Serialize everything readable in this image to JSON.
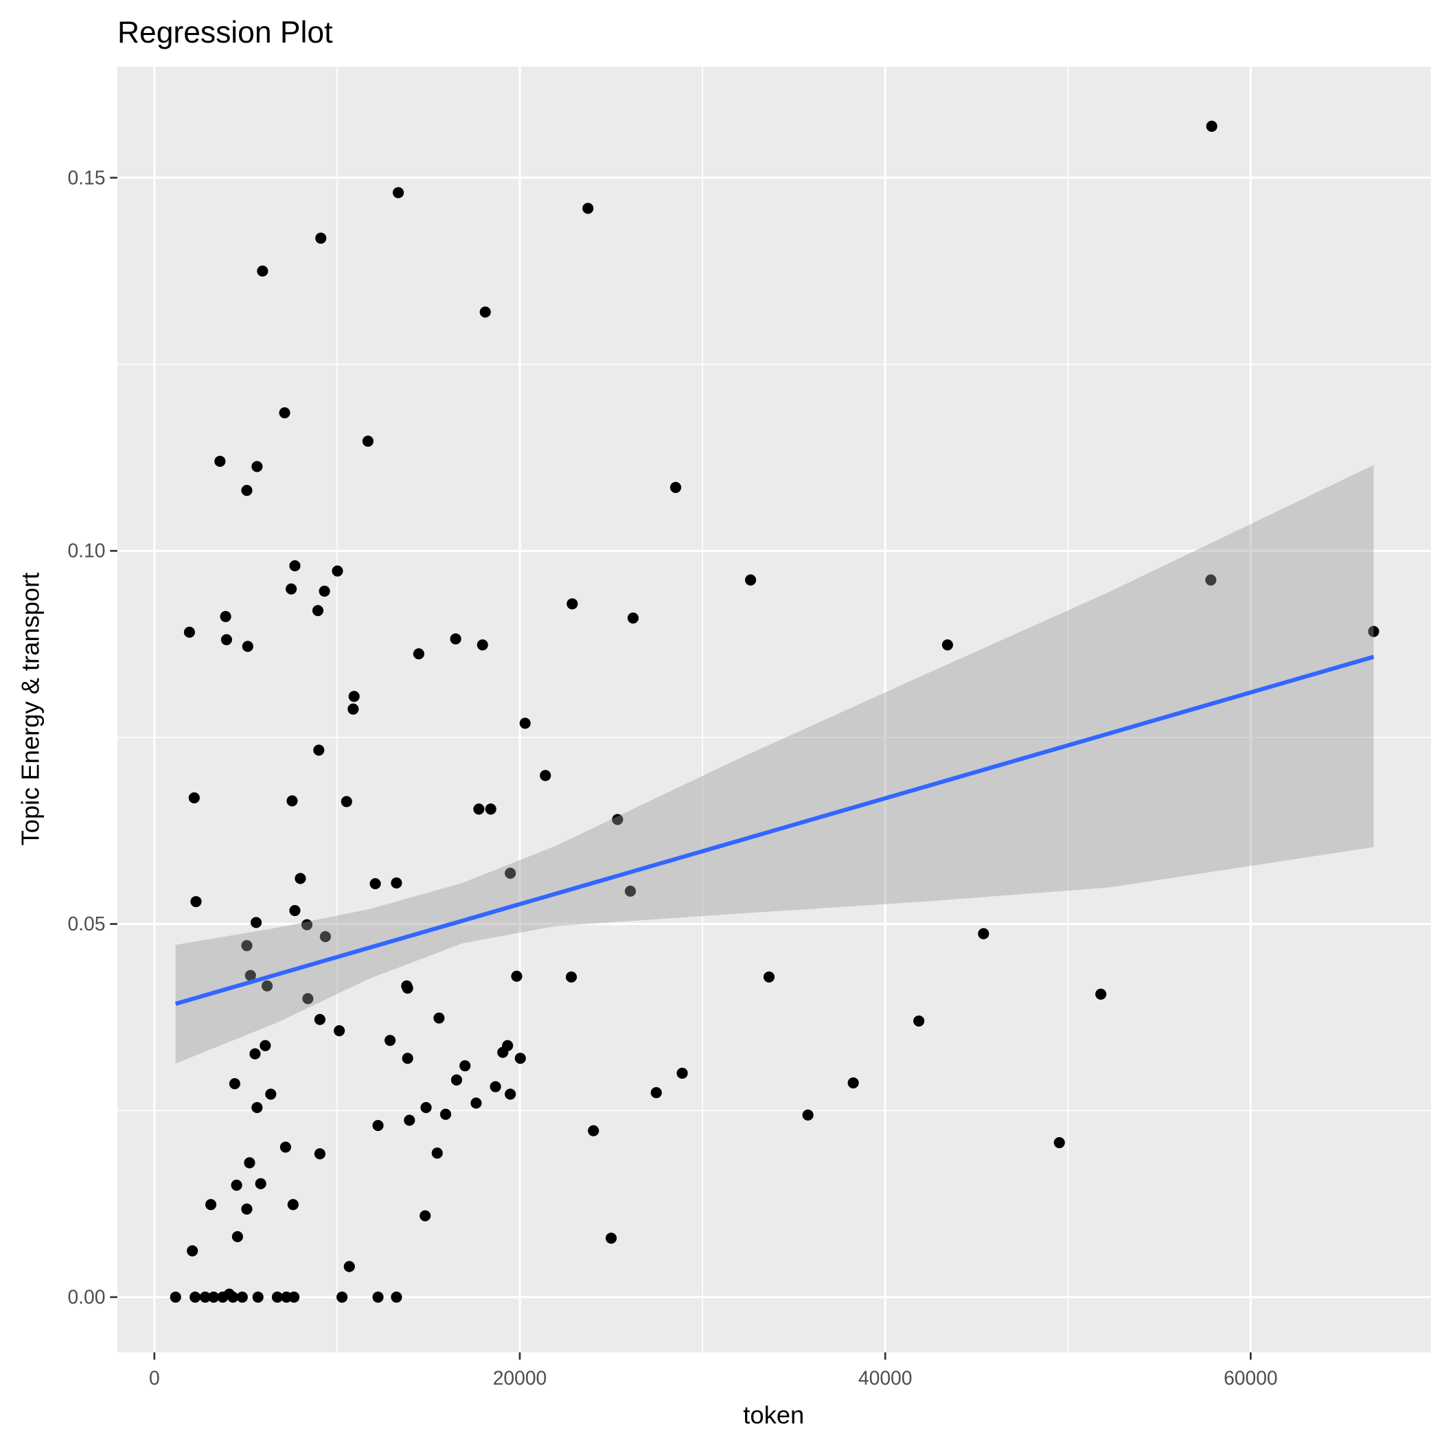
{
  "chart_data": {
    "type": "scatter",
    "title": "Regression Plot",
    "xlabel": "token",
    "ylabel": "Topic Energy & transport",
    "xlim": [
      -2024,
      69865
    ],
    "ylim": [
      -0.0074,
      0.1649
    ],
    "x_ticks": [
      0,
      20000,
      40000,
      60000
    ],
    "x_tick_labels": [
      "0",
      "20000",
      "40000",
      "60000"
    ],
    "x_minor": [
      10000,
      30000,
      50000
    ],
    "y_ticks": [
      0,
      0.05,
      0.1,
      0.15
    ],
    "y_tick_labels": [
      "0.00",
      "0.05",
      "0.10",
      "0.15"
    ],
    "y_minor": [
      0.025,
      0.075,
      0.125
    ],
    "grid": true,
    "colors": {
      "panel": "#ebebeb",
      "grid": "#ffffff",
      "points": "#000000",
      "line": "#3366ff",
      "ribbon": "#999999"
    },
    "points": [
      [
        1160,
        0
      ],
      [
        1920,
        0.0891
      ],
      [
        2180,
        0.0669
      ],
      [
        2080,
        0.0062
      ],
      [
        2280,
        0.053
      ],
      [
        2230,
        0
      ],
      [
        2780,
        0
      ],
      [
        3090,
        0.0124
      ],
      [
        3240,
        0
      ],
      [
        3590,
        0.112
      ],
      [
        3900,
        0.0912
      ],
      [
        3950,
        0.0881
      ],
      [
        3740,
        0
      ],
      [
        4100,
        0.0004
      ],
      [
        4300,
        0
      ],
      [
        4400,
        0.0286
      ],
      [
        4500,
        0.015
      ],
      [
        4550,
        0.0081
      ],
      [
        4810,
        0
      ],
      [
        5060,
        0.1081
      ],
      [
        5110,
        0.0872
      ],
      [
        5060,
        0.0471
      ],
      [
        5060,
        0.0118
      ],
      [
        5210,
        0.018
      ],
      [
        5260,
        0.0431
      ],
      [
        5510,
        0.0326
      ],
      [
        5570,
        0.0502
      ],
      [
        5620,
        0.1113
      ],
      [
        5620,
        0.0254
      ],
      [
        5670,
        0
      ],
      [
        5820,
        0.0152
      ],
      [
        5920,
        0.1375
      ],
      [
        6070,
        0.0337
      ],
      [
        6170,
        0.0417
      ],
      [
        6370,
        0.0272
      ],
      [
        6730,
        0
      ],
      [
        7130,
        0.1185
      ],
      [
        7180,
        0.0201
      ],
      [
        7230,
        0
      ],
      [
        7490,
        0.0949
      ],
      [
        7540,
        0.0665
      ],
      [
        7590,
        0.0124
      ],
      [
        7640,
        0
      ],
      [
        7690,
        0.098
      ],
      [
        7690,
        0.0518
      ],
      [
        7990,
        0.0561
      ],
      [
        8350,
        0.0499
      ],
      [
        8400,
        0.04
      ],
      [
        8950,
        0.092
      ],
      [
        9000,
        0.0733
      ],
      [
        9060,
        0.0372
      ],
      [
        9060,
        0.0192
      ],
      [
        9110,
        0.1419
      ],
      [
        9310,
        0.0946
      ],
      [
        9360,
        0.0483
      ],
      [
        10020,
        0.0973
      ],
      [
        10120,
        0.0357
      ],
      [
        10270,
        0
      ],
      [
        10520,
        0.0664
      ],
      [
        10670,
        0.0041
      ],
      [
        10880,
        0.0788
      ],
      [
        10930,
        0.0805
      ],
      [
        11690,
        0.1147
      ],
      [
        12090,
        0.0554
      ],
      [
        12240,
        0.023
      ],
      [
        12240,
        0
      ],
      [
        12900,
        0.0344
      ],
      [
        13250,
        0.0555
      ],
      [
        13250,
        0
      ],
      [
        13350,
        0.148
      ],
      [
        13810,
        0.0417
      ],
      [
        13860,
        0.0414
      ],
      [
        13860,
        0.032
      ],
      [
        13960,
        0.0237
      ],
      [
        14470,
        0.0862
      ],
      [
        14820,
        0.0109
      ],
      [
        14870,
        0.0254
      ],
      [
        15480,
        0.0193
      ],
      [
        15580,
        0.0374
      ],
      [
        15940,
        0.0245
      ],
      [
        16490,
        0.0882
      ],
      [
        16540,
        0.0291
      ],
      [
        17000,
        0.031
      ],
      [
        17610,
        0.026
      ],
      [
        17760,
        0.0654
      ],
      [
        17960,
        0.0874
      ],
      [
        18110,
        0.132
      ],
      [
        18410,
        0.0654
      ],
      [
        18670,
        0.0282
      ],
      [
        19070,
        0.0328
      ],
      [
        19330,
        0.0337
      ],
      [
        19480,
        0.0568
      ],
      [
        19480,
        0.0272
      ],
      [
        19830,
        0.043
      ],
      [
        20030,
        0.032
      ],
      [
        20290,
        0.0769
      ],
      [
        21400,
        0.0699
      ],
      [
        22820,
        0.0429
      ],
      [
        22870,
        0.0929
      ],
      [
        23730,
        0.1459
      ],
      [
        24030,
        0.0223
      ],
      [
        25000,
        0.0079
      ],
      [
        25350,
        0.064
      ],
      [
        26050,
        0.0544
      ],
      [
        26200,
        0.091
      ],
      [
        27470,
        0.0274
      ],
      [
        28530,
        0.1085
      ],
      [
        28890,
        0.03
      ],
      [
        32630,
        0.0961
      ],
      [
        33640,
        0.0429
      ],
      [
        35770,
        0.0244
      ],
      [
        38250,
        0.0287
      ],
      [
        41840,
        0.037
      ],
      [
        43410,
        0.0874
      ],
      [
        45380,
        0.0487
      ],
      [
        49530,
        0.0207
      ],
      [
        51800,
        0.0406
      ],
      [
        57870,
        0.1569
      ],
      [
        57820,
        0.0961
      ],
      [
        66730,
        0.0892
      ]
    ],
    "regression_line": [
      [
        1160,
        0.0393
      ],
      [
        66730,
        0.0858
      ]
    ],
    "confidence_band": [
      {
        "x": 1160,
        "lower": 0.0313,
        "upper": 0.0472
      },
      {
        "x": 6730,
        "lower": 0.0368,
        "upper": 0.0495
      },
      {
        "x": 11790,
        "lower": 0.0427,
        "upper": 0.052
      },
      {
        "x": 16850,
        "lower": 0.0474,
        "upper": 0.0555
      },
      {
        "x": 21900,
        "lower": 0.0497,
        "upper": 0.0604
      },
      {
        "x": 32020,
        "lower": 0.0514,
        "upper": 0.0722
      },
      {
        "x": 42140,
        "lower": 0.053,
        "upper": 0.0834
      },
      {
        "x": 52260,
        "lower": 0.0549,
        "upper": 0.0945
      },
      {
        "x": 66730,
        "lower": 0.0603,
        "upper": 0.1115
      }
    ]
  }
}
